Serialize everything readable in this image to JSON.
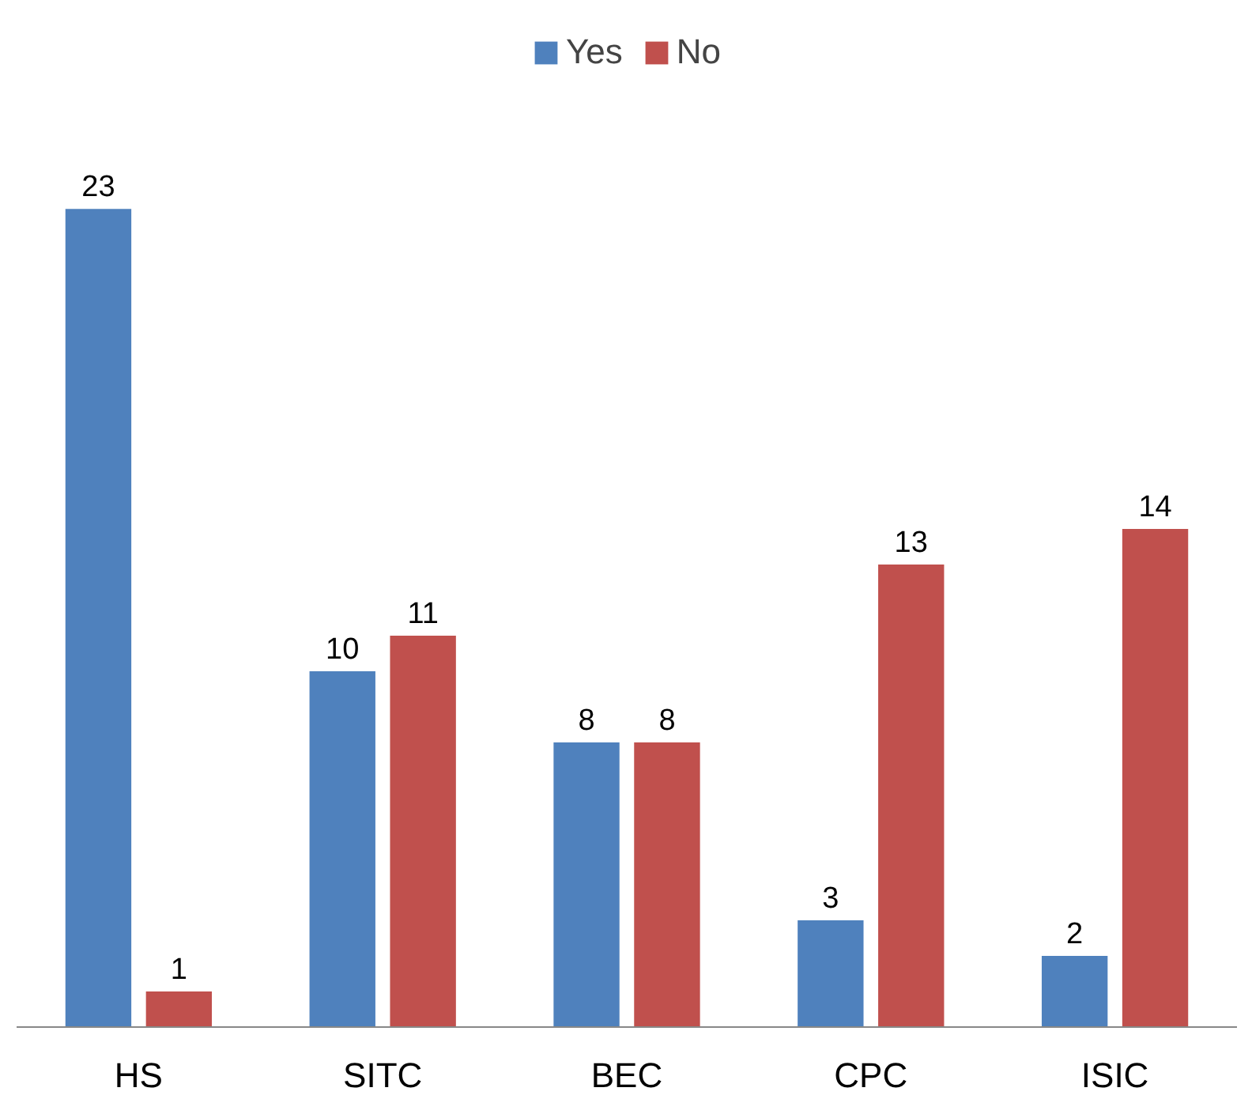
{
  "chart_data": {
    "type": "bar",
    "categories": [
      "HS",
      "SITC",
      "BEC",
      "CPC",
      "ISIC"
    ],
    "series": [
      {
        "name": "Yes",
        "color": "#4f81bd",
        "values": [
          23,
          10,
          8,
          3,
          2
        ]
      },
      {
        "name": "No",
        "color": "#c0504d",
        "values": [
          1,
          11,
          8,
          13,
          14
        ]
      }
    ],
    "data_labels": true,
    "legend": "top",
    "grid": false
  }
}
